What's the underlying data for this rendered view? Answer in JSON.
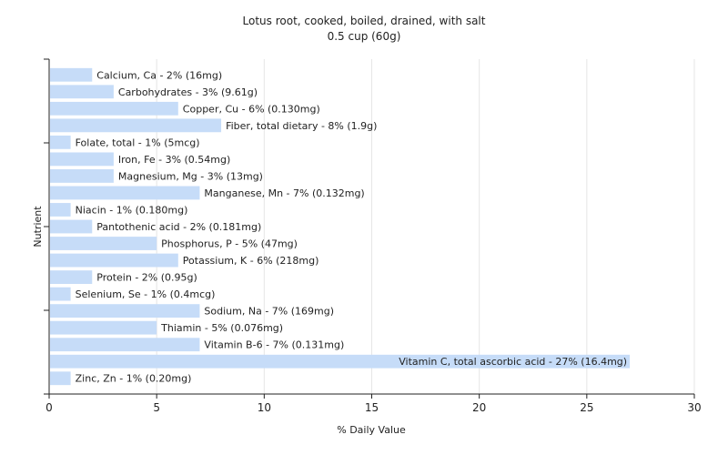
{
  "chart_data": {
    "type": "bar",
    "orientation": "horizontal",
    "title": "Lotus root, cooked, boiled, drained, with salt",
    "subtitle": "0.5 cup (60g)",
    "xlabel": "% Daily Value",
    "ylabel": "Nutrient",
    "xlim": [
      0,
      30
    ],
    "xticks": [
      "0",
      "5",
      "10",
      "15",
      "20",
      "25",
      "30"
    ],
    "grid": true,
    "bar_color": "#c6dcf8",
    "categories": [
      "Calcium, Ca",
      "Carbohydrates",
      "Copper, Cu",
      "Fiber, total dietary",
      "Folate, total",
      "Iron, Fe",
      "Magnesium, Mg",
      "Manganese, Mn",
      "Niacin",
      "Pantothenic acid",
      "Phosphorus, P",
      "Potassium, K",
      "Protein",
      "Selenium, Se",
      "Sodium, Na",
      "Thiamin",
      "Vitamin B-6",
      "Vitamin C, total ascorbic acid",
      "Zinc, Zn"
    ],
    "values": [
      2,
      3,
      6,
      8,
      1,
      3,
      3,
      7,
      1,
      2,
      5,
      6,
      2,
      1,
      7,
      5,
      7,
      27,
      1
    ],
    "labels": [
      "Calcium, Ca - 2% (16mg)",
      "Carbohydrates - 3% (9.61g)",
      "Copper, Cu - 6% (0.130mg)",
      "Fiber, total dietary - 8% (1.9g)",
      "Folate, total - 1% (5mcg)",
      "Iron, Fe - 3% (0.54mg)",
      "Magnesium, Mg - 3% (13mg)",
      "Manganese, Mn - 7% (0.132mg)",
      "Niacin - 1% (0.180mg)",
      "Pantothenic acid - 2% (0.181mg)",
      "Phosphorus, P - 5% (47mg)",
      "Potassium, K - 6% (218mg)",
      "Protein - 2% (0.95g)",
      "Selenium, Se - 1% (0.4mcg)",
      "Sodium, Na - 7% (169mg)",
      "Thiamin - 5% (0.076mg)",
      "Vitamin B-6 - 7% (0.131mg)",
      "Vitamin C, total ascorbic acid - 27% (16.4mg)",
      "Zinc, Zn - 1% (0.20mg)"
    ]
  }
}
